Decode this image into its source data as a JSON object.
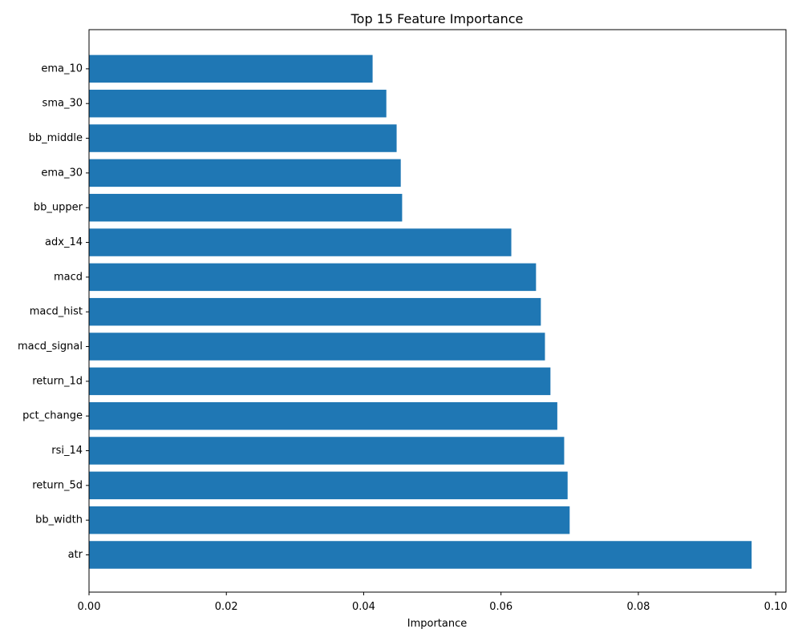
{
  "chart_data": {
    "type": "bar",
    "orientation": "horizontal",
    "title": "Top 15 Feature Importance",
    "xlabel": "Importance",
    "ylabel": "",
    "xlim": [
      0,
      0.1015
    ],
    "x_ticks": [
      0.0,
      0.02,
      0.04,
      0.06,
      0.08,
      0.1
    ],
    "x_tick_labels": [
      "0.00",
      "0.02",
      "0.04",
      "0.06",
      "0.08",
      "0.10"
    ],
    "grid": false,
    "legend": "none",
    "bar_color": "#1f77b4",
    "categories": [
      "atr",
      "bb_width",
      "return_5d",
      "rsi_14",
      "pct_change",
      "return_1d",
      "macd_signal",
      "macd_hist",
      "macd",
      "adx_14",
      "bb_upper",
      "ema_30",
      "bb_middle",
      "sma_30",
      "ema_10"
    ],
    "values": [
      0.0965,
      0.07,
      0.0697,
      0.0692,
      0.0682,
      0.0672,
      0.0664,
      0.0658,
      0.0651,
      0.0615,
      0.0456,
      0.0454,
      0.0448,
      0.0433,
      0.0413
    ]
  }
}
